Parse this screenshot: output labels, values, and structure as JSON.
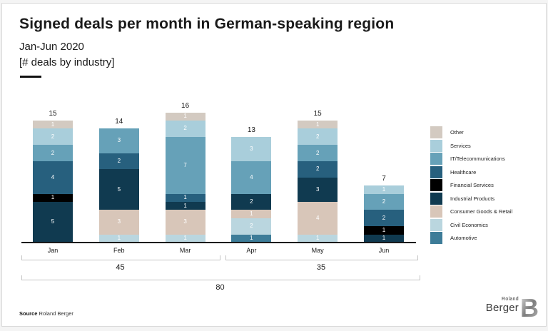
{
  "header": {
    "title": "Signed deals per month in German-speaking region",
    "subtitle": "Jan-Jun 2020",
    "unit_label": "[# deals by industry]"
  },
  "chart_data": {
    "type": "bar",
    "stacked": true,
    "title": "Signed deals per month in German-speaking region",
    "categories": [
      "Jan",
      "Feb",
      "Mar",
      "Apr",
      "May",
      "Jun"
    ],
    "series": [
      {
        "name": "Other",
        "color": "#d3cac1",
        "values": [
          1,
          0,
          1,
          0,
          1,
          0
        ]
      },
      {
        "name": "Services",
        "color": "#a9cedb",
        "values": [
          2,
          0,
          2,
          3,
          2,
          1
        ]
      },
      {
        "name": "IT/Telecommunications",
        "color": "#66a1b8",
        "values": [
          2,
          3,
          7,
          4,
          2,
          2
        ]
      },
      {
        "name": "Healthcare",
        "color": "#27607e",
        "values": [
          4,
          2,
          1,
          0,
          2,
          2
        ]
      },
      {
        "name": "Financial Services",
        "color": "#000000",
        "values": [
          1,
          0,
          0,
          0,
          0,
          1
        ]
      },
      {
        "name": "Industrial Products",
        "color": "#103a50",
        "values": [
          5,
          5,
          1,
          2,
          3,
          1
        ]
      },
      {
        "name": "Consumer Goods & Retail",
        "color": "#d8c6b9",
        "values": [
          0,
          3,
          3,
          1,
          4,
          0
        ]
      },
      {
        "name": "Civil Economics",
        "color": "#bad6df",
        "values": [
          0,
          1,
          1,
          2,
          1,
          0
        ]
      },
      {
        "name": "Automotive",
        "color": "#3d7c98",
        "values": [
          0,
          0,
          0,
          1,
          0,
          0
        ]
      }
    ],
    "totals": [
      15,
      14,
      16,
      13,
      15,
      7
    ],
    "brackets": [
      {
        "label": "45",
        "span": "h1"
      },
      {
        "label": "35",
        "span": "h2"
      },
      {
        "label": "80",
        "span": "all"
      }
    ],
    "legend_position": "right",
    "stack_order_note": "top-to-bottom follows legend order"
  },
  "footer": {
    "source_label": "Source",
    "source_value": "Roland Berger"
  },
  "logo": {
    "line1": "Roland",
    "line2": "Berger",
    "mark": "B"
  }
}
